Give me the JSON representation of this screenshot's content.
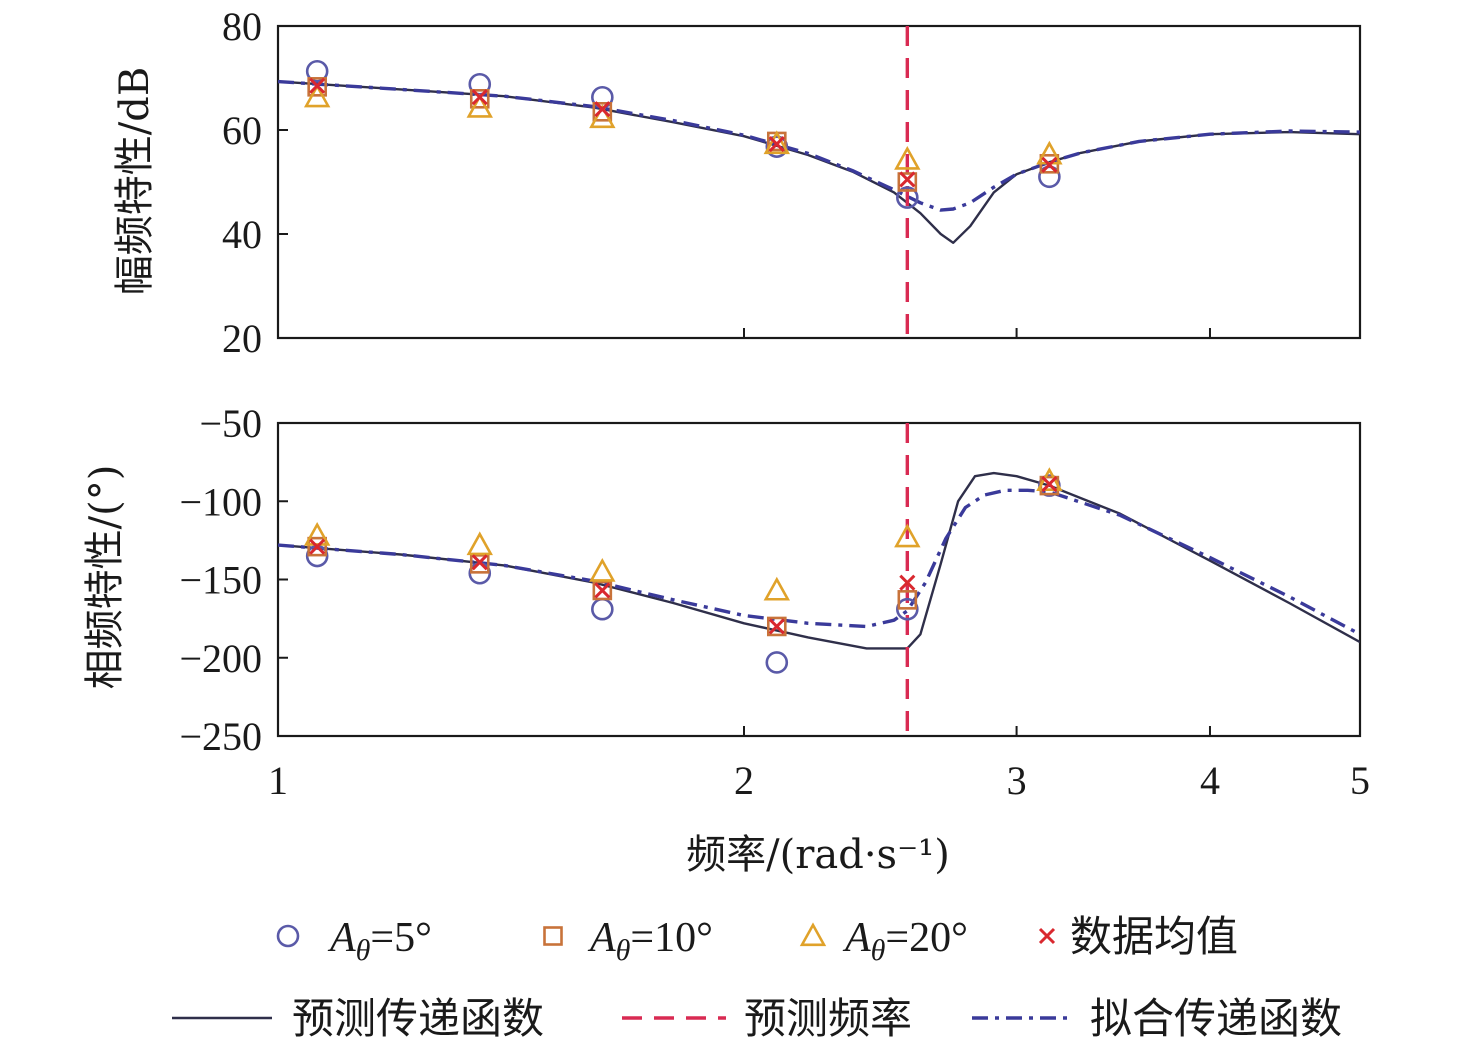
{
  "chart_data": [
    {
      "type": "line",
      "name": "magnitude",
      "title": "",
      "xlabel": "",
      "ylabel": "幅频特性/dB",
      "xscale": "log",
      "xlim": [
        1,
        5
      ],
      "ylim": [
        20,
        80
      ],
      "xticks": [
        1,
        2,
        3,
        4,
        5
      ],
      "yticks": [
        20,
        40,
        60,
        80
      ],
      "ytick_labels": [
        "20",
        "40",
        "60",
        "80"
      ],
      "grid": false,
      "series": [
        {
          "key": "A5",
          "type": "scatter",
          "marker": "circle",
          "color": "#5a5aa8",
          "x": [
            1.06,
            1.35,
            1.62,
            2.1,
            2.55,
            3.15
          ],
          "y": [
            71.3,
            68.8,
            66.3,
            56.8,
            47.0,
            51.0
          ]
        },
        {
          "key": "A10",
          "type": "scatter",
          "marker": "square",
          "color": "#c8733a",
          "x": [
            1.06,
            1.35,
            1.62,
            2.1,
            2.55,
            3.15
          ],
          "y": [
            68.3,
            66.0,
            63.5,
            57.8,
            50.0,
            53.5
          ]
        },
        {
          "key": "A20",
          "type": "scatter",
          "marker": "triangle",
          "color": "#e0a22a",
          "x": [
            1.06,
            1.35,
            1.62,
            2.1,
            2.55,
            3.15
          ],
          "y": [
            66.3,
            64.3,
            62.3,
            57.3,
            54.3,
            55.3
          ]
        },
        {
          "key": "mean",
          "type": "scatter",
          "marker": "x",
          "color": "#d9282f",
          "x": [
            1.06,
            1.35,
            1.62,
            2.1,
            2.55,
            3.15
          ],
          "y": [
            68.5,
            66.3,
            64.0,
            57.3,
            50.5,
            53.3
          ]
        },
        {
          "key": "pred_tf",
          "type": "line",
          "style": "solid",
          "color": "#2f2f4a",
          "x": [
            1.0,
            1.2,
            1.4,
            1.6,
            1.8,
            2.0,
            2.2,
            2.35,
            2.5,
            2.6,
            2.68,
            2.73,
            2.8,
            2.9,
            3.0,
            3.15,
            3.3,
            3.6,
            4.0,
            4.5,
            5.0
          ],
          "y": [
            69.3,
            67.8,
            66.5,
            64.3,
            61.5,
            58.8,
            55.2,
            52.0,
            48.0,
            44.0,
            40.0,
            38.3,
            41.5,
            48.0,
            51.5,
            53.8,
            55.6,
            57.8,
            59.2,
            59.6,
            59.2
          ]
        },
        {
          "key": "pred_freq",
          "type": "vline",
          "style": "dashed",
          "color": "#d92a52",
          "x": 2.55
        },
        {
          "key": "fit_tf",
          "type": "line",
          "style": "dashdot",
          "color": "#3a3a9a",
          "x": [
            1.0,
            1.2,
            1.4,
            1.6,
            1.8,
            2.0,
            2.2,
            2.35,
            2.5,
            2.6,
            2.68,
            2.73,
            2.8,
            2.9,
            3.0,
            3.15,
            3.3,
            3.6,
            4.0,
            4.5,
            5.0
          ],
          "y": [
            69.3,
            67.8,
            66.5,
            64.5,
            61.8,
            59.0,
            55.5,
            52.2,
            48.5,
            46.0,
            44.6,
            44.8,
            46.0,
            49.0,
            51.5,
            53.8,
            55.6,
            57.8,
            59.2,
            59.8,
            59.6
          ]
        }
      ]
    },
    {
      "type": "line",
      "name": "phase",
      "title": "",
      "xlabel": "频率/(rad·s⁻¹)",
      "ylabel": "相频特性/(°)",
      "xscale": "log",
      "xlim": [
        1,
        5
      ],
      "ylim": [
        -250,
        -50
      ],
      "xticks": [
        1,
        2,
        3,
        4,
        5
      ],
      "xtick_labels": [
        "1",
        "2",
        "3",
        "4",
        "5"
      ],
      "yticks": [
        -250,
        -200,
        -150,
        -100,
        -50
      ],
      "ytick_labels": [
        "−250",
        "−200",
        "−150",
        "−100",
        "−50"
      ],
      "grid": false,
      "series": [
        {
          "key": "A5",
          "type": "scatter",
          "marker": "circle",
          "color": "#5a5aa8",
          "x": [
            1.06,
            1.35,
            1.62,
            2.1,
            2.55,
            3.15
          ],
          "y": [
            -135,
            -146,
            -169,
            -203,
            -169,
            -90
          ]
        },
        {
          "key": "A10",
          "type": "scatter",
          "marker": "square",
          "color": "#c8733a",
          "x": [
            1.06,
            1.35,
            1.62,
            2.1,
            2.55,
            3.15
          ],
          "y": [
            -129,
            -140,
            -157,
            -180,
            -163,
            -90
          ]
        },
        {
          "key": "A20",
          "type": "scatter",
          "marker": "triangle",
          "color": "#e0a22a",
          "x": [
            1.06,
            1.35,
            1.62,
            2.1,
            2.55,
            3.15
          ],
          "y": [
            -122,
            -128,
            -145,
            -157,
            -123,
            -87
          ]
        },
        {
          "key": "mean",
          "type": "scatter",
          "marker": "x",
          "color": "#d9282f",
          "x": [
            1.06,
            1.35,
            1.62,
            2.1,
            2.55,
            3.15
          ],
          "y": [
            -129,
            -139,
            -157,
            -180,
            -152,
            -89
          ]
        },
        {
          "key": "pred_tf",
          "type": "line",
          "style": "solid",
          "color": "#2f2f4a",
          "x": [
            1.0,
            1.2,
            1.4,
            1.6,
            1.8,
            2.0,
            2.2,
            2.4,
            2.55,
            2.6,
            2.68,
            2.75,
            2.82,
            2.9,
            3.0,
            3.15,
            3.5,
            4.0,
            4.5,
            5.0
          ],
          "y": [
            -128,
            -134,
            -141,
            -152,
            -165,
            -178,
            -187,
            -194,
            -194,
            -185,
            -140,
            -100,
            -84,
            -82,
            -84,
            -90,
            -108,
            -138,
            -165,
            -190
          ]
        },
        {
          "key": "pred_freq",
          "type": "vline",
          "style": "dashed",
          "color": "#d92a52",
          "x": 2.55
        },
        {
          "key": "fit_tf",
          "type": "line",
          "style": "dashdot",
          "color": "#3a3a9a",
          "x": [
            1.0,
            1.2,
            1.4,
            1.6,
            1.8,
            2.0,
            2.2,
            2.4,
            2.5,
            2.55,
            2.62,
            2.7,
            2.78,
            2.86,
            2.95,
            3.05,
            3.15,
            3.5,
            4.0,
            4.5,
            5.0
          ],
          "y": [
            -128,
            -134,
            -141,
            -151,
            -163,
            -173,
            -178,
            -180,
            -176,
            -170,
            -152,
            -124,
            -104,
            -96,
            -93,
            -93,
            -94,
            -109,
            -136,
            -161,
            -185
          ]
        }
      ]
    }
  ],
  "legend": {
    "placement": "bottom",
    "entries": [
      {
        "key": "A5",
        "symbol": "A",
        "subscript": "θ",
        "value": "=5°"
      },
      {
        "key": "A10",
        "symbol": "A",
        "subscript": "θ",
        "value": "=10°"
      },
      {
        "key": "A20",
        "symbol": "A",
        "subscript": "θ",
        "value": "=20°"
      },
      {
        "key": "mean",
        "label": "数据均值"
      },
      {
        "key": "pred_tf",
        "label": "预测传递函数"
      },
      {
        "key": "pred_freq",
        "label": "预测频率"
      },
      {
        "key": "fit_tf",
        "label": "拟合传递函数"
      }
    ]
  }
}
